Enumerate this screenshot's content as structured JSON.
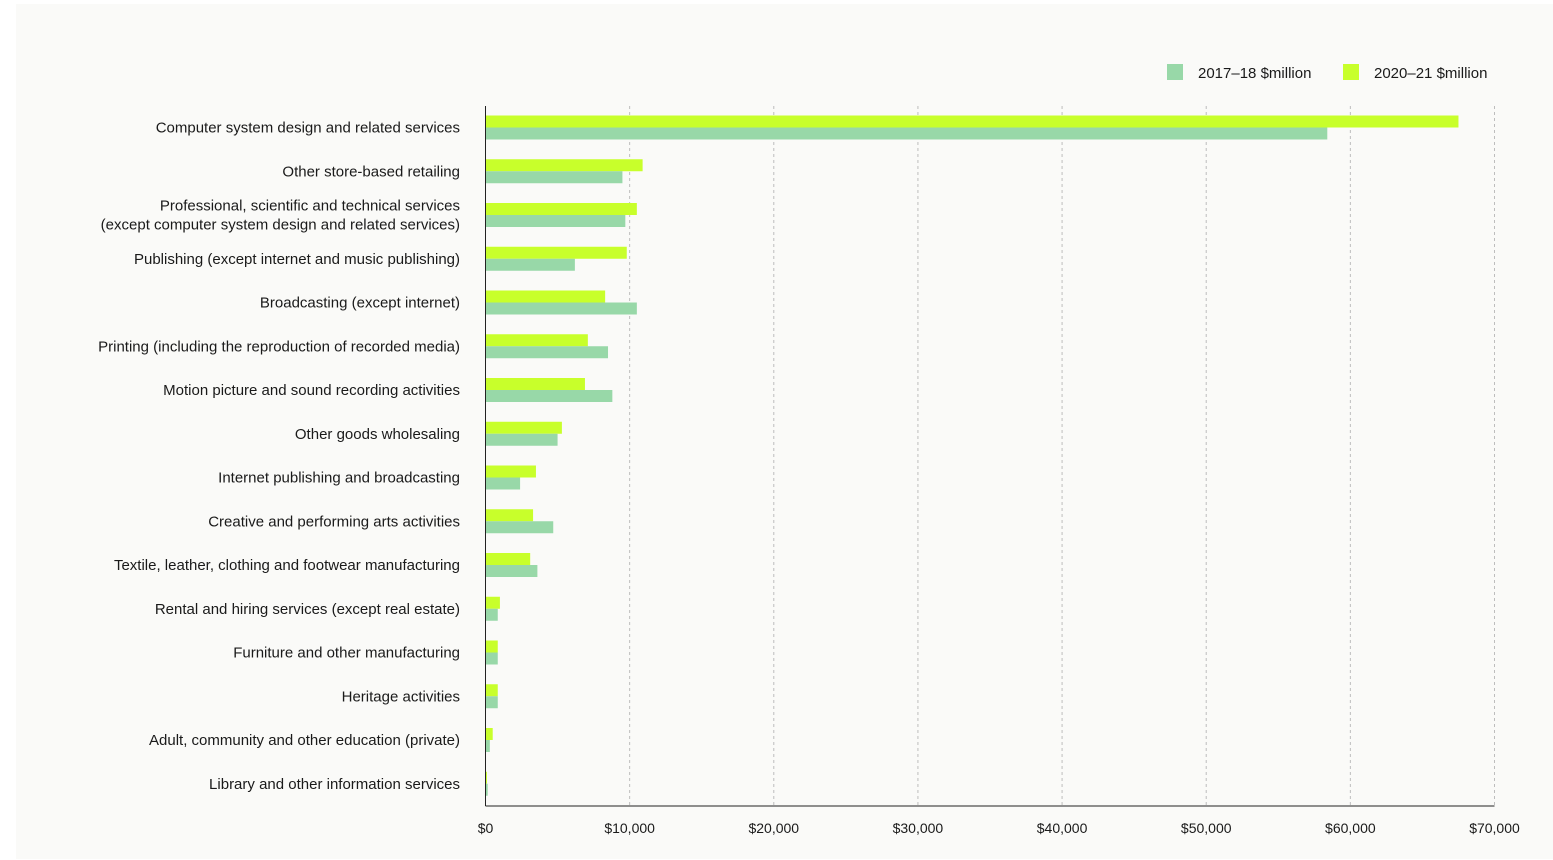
{
  "chart_data": {
    "type": "bar",
    "orientation": "horizontal",
    "categories": [
      "Computer system design and related services",
      "Other store-based retailing",
      "Professional, scientific and technical services\n(except computer system design and related services)",
      "Publishing (except internet and music publishing)",
      "Broadcasting (except internet)",
      "Printing (including the reproduction of recorded media)",
      "Motion picture and sound recording activities",
      "Other goods wholesaling",
      "Internet publishing and broadcasting",
      "Creative and performing arts activities",
      "Textile, leather, clothing and footwear manufacturing",
      "Rental and hiring services (except real estate)",
      "Furniture and other manufacturing",
      "Heritage activities",
      "Adult, community and other education (private)",
      "Library and other information services"
    ],
    "series": [
      {
        "name": "2020–21 $million",
        "color": "#c8ff2b",
        "values": [
          67500,
          10900,
          10500,
          9800,
          8300,
          7100,
          6900,
          5300,
          3500,
          3300,
          3100,
          1000,
          850,
          850,
          500,
          100
        ]
      },
      {
        "name": "2017–18 $million",
        "color": "#98d8a8",
        "values": [
          58400,
          9500,
          9700,
          6200,
          10500,
          8500,
          8800,
          5000,
          2400,
          4700,
          3600,
          850,
          850,
          850,
          300,
          150
        ]
      }
    ],
    "legend_order": [
      1,
      0
    ],
    "xlim": [
      0,
      70000
    ],
    "x_ticks": [
      0,
      10000,
      20000,
      30000,
      40000,
      50000,
      60000,
      70000
    ],
    "x_tick_labels": [
      "$0",
      "$10,000",
      "$20,000",
      "$30,000",
      "$40,000",
      "$50,000",
      "$60,000",
      "$70,000"
    ],
    "grid": "vertical-dashed",
    "legend_position": "top-right",
    "title": "",
    "xlabel": "",
    "ylabel": ""
  }
}
